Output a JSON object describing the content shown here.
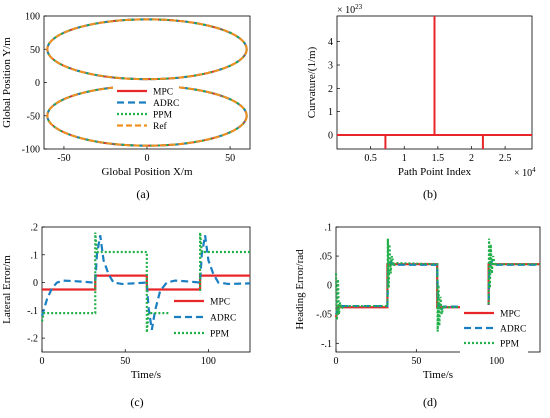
{
  "colors": {
    "MPC": "#e8262a",
    "ADRC": "#1a7fc1",
    "PPM": "#22b04a",
    "Ref": "#f09020"
  },
  "chart_data": [
    {
      "id": "a",
      "caption": "(a)",
      "type": "line",
      "xlabel": "Global Position X/m",
      "ylabel": "Global Position Y/m",
      "xlim": [
        -62,
        62
      ],
      "ylim": [
        -100,
        100
      ],
      "xticks": [
        -50,
        0,
        50
      ],
      "yticks": [
        -100,
        -50,
        0,
        50,
        100
      ],
      "legend": {
        "placement": "center-bottom",
        "entries": [
          "MPC",
          "ADRC",
          "PPM",
          "Ref"
        ]
      },
      "shape": {
        "description_values": {
          "ellipses": [
            {
              "cx": 0,
              "cy": 50,
              "rx": 60,
              "ry": 45
            },
            {
              "cx": 0,
              "cy": -50,
              "rx": 60,
              "ry": 45
            }
          ]
        }
      },
      "series": [
        {
          "name": "MPC"
        },
        {
          "name": "ADRC"
        },
        {
          "name": "PPM"
        },
        {
          "name": "Ref"
        }
      ]
    },
    {
      "id": "b",
      "caption": "(b)",
      "type": "line",
      "xlabel": "Path Point Index",
      "ylabel": "Curvature/(1/m)",
      "x_exponent": "× 10",
      "x_exponent_power": "4",
      "y_exponent": "× 10",
      "y_exponent_power": "23",
      "xlim": [
        0,
        2.9
      ],
      "ylim": [
        -0.6,
        5.1
      ],
      "xticks": [
        0.5,
        1,
        1.5,
        2,
        2.5
      ],
      "yticks": [
        0,
        1,
        2,
        3,
        4
      ],
      "spikes": [
        {
          "x": 0.72,
          "y": -0.6
        },
        {
          "x": 1.45,
          "y": 5.1
        },
        {
          "x": 2.17,
          "y": -0.6
        }
      ]
    },
    {
      "id": "c",
      "caption": "(c)",
      "type": "line",
      "xlabel": "Time/s",
      "ylabel": "Lateral Error/m",
      "xlim": [
        0,
        125
      ],
      "ylim": [
        -0.25,
        0.2
      ],
      "xticks": [
        0,
        50,
        100
      ],
      "yticks": [
        -0.2,
        -0.1,
        0,
        0.1,
        0.2
      ],
      "legend": {
        "placement": "bottom-right",
        "entries": [
          "MPC",
          "ADRC",
          "PPM"
        ]
      },
      "series": [
        {
          "name": "MPC",
          "points": [
            [
              0,
              -0.025
            ],
            [
              32,
              -0.025
            ],
            [
              32,
              0.025
            ],
            [
              63,
              0.025
            ],
            [
              63,
              -0.025
            ],
            [
              95,
              -0.025
            ],
            [
              95,
              0.025
            ],
            [
              125,
              0.025
            ]
          ]
        },
        {
          "name": "ADRC",
          "points": [
            [
              0,
              -0.12
            ],
            [
              3,
              -0.06
            ],
            [
              6,
              -0.02
            ],
            [
              9,
              0.0
            ],
            [
              13,
              0.007
            ],
            [
              20,
              0.005
            ],
            [
              31,
              0.0
            ],
            [
              32,
              0.0
            ],
            [
              33,
              0.1
            ],
            [
              35,
              0.17
            ],
            [
              37,
              0.08
            ],
            [
              40,
              0.03
            ],
            [
              43,
              0.0
            ],
            [
              48,
              -0.005
            ],
            [
              55,
              -0.003
            ],
            [
              63,
              0.0
            ],
            [
              64,
              -0.09
            ],
            [
              66,
              -0.17
            ],
            [
              68,
              -0.1
            ],
            [
              71,
              -0.03
            ],
            [
              75,
              0.0
            ],
            [
              80,
              0.007
            ],
            [
              88,
              0.004
            ],
            [
              95,
              0.0
            ],
            [
              96,
              0.1
            ],
            [
              98,
              0.17
            ],
            [
              100,
              0.08
            ],
            [
              103,
              0.03
            ],
            [
              106,
              0.0
            ],
            [
              112,
              -0.005
            ],
            [
              125,
              -0.003
            ]
          ]
        },
        {
          "name": "PPM",
          "points": [
            [
              0,
              -0.14
            ],
            [
              1,
              -0.11
            ],
            [
              32,
              -0.11
            ],
            [
              32,
              0.18
            ],
            [
              33,
              0.11
            ],
            [
              63,
              0.11
            ],
            [
              63,
              -0.18
            ],
            [
              64,
              -0.11
            ],
            [
              95,
              -0.11
            ],
            [
              95,
              0.18
            ],
            [
              96,
              0.11
            ],
            [
              125,
              0.11
            ]
          ]
        }
      ]
    },
    {
      "id": "d",
      "caption": "(d)",
      "type": "line",
      "xlabel": "Time/s",
      "ylabel": "Heading Error/rad",
      "xlim": [
        0,
        127
      ],
      "ylim": [
        -0.115,
        0.1
      ],
      "xticks": [
        0,
        50,
        100
      ],
      "yticks": [
        -0.1,
        -0.05,
        0,
        0.05,
        0.1
      ],
      "legend": {
        "placement": "bottom-right",
        "entries": [
          "MPC",
          "ADRC",
          "PPM"
        ]
      },
      "series": [
        {
          "name": "MPC",
          "points": [
            [
              0,
              -0.055
            ],
            [
              1,
              -0.038
            ],
            [
              32,
              -0.038
            ],
            [
              32,
              0.036
            ],
            [
              63,
              0.036
            ],
            [
              63,
              -0.038
            ],
            [
              95,
              -0.038
            ],
            [
              95,
              0.036
            ],
            [
              127,
              0.036
            ]
          ]
        },
        {
          "name": "ADRC",
          "points": [
            [
              0,
              -0.05
            ],
            [
              2,
              -0.036
            ],
            [
              32,
              -0.036
            ],
            [
              32.5,
              0.028
            ],
            [
              34,
              0.04
            ],
            [
              36,
              0.035
            ],
            [
              63,
              0.035
            ],
            [
              63.5,
              -0.03
            ],
            [
              65,
              -0.045
            ],
            [
              67,
              -0.037
            ],
            [
              95,
              -0.037
            ],
            [
              95.5,
              0.028
            ],
            [
              97,
              0.04
            ],
            [
              99,
              0.035
            ],
            [
              127,
              0.035
            ]
          ]
        },
        {
          "name": "PPM",
          "points": [
            [
              0,
              0.02
            ],
            [
              0.6,
              -0.06
            ],
            [
              1.2,
              0.01
            ],
            [
              1.8,
              -0.05
            ],
            [
              2.5,
              -0.03
            ],
            [
              3.5,
              -0.04
            ],
            [
              5,
              -0.036
            ],
            [
              32,
              -0.036
            ],
            [
              32.3,
              0.08
            ],
            [
              32.8,
              -0.005
            ],
            [
              33.3,
              0.07
            ],
            [
              34,
              0.02
            ],
            [
              34.8,
              0.05
            ],
            [
              36,
              0.033
            ],
            [
              37,
              0.038
            ],
            [
              63,
              0.036
            ],
            [
              63.3,
              -0.08
            ],
            [
              63.8,
              0.0
            ],
            [
              64.3,
              -0.07
            ],
            [
              65,
              -0.02
            ],
            [
              65.8,
              -0.05
            ],
            [
              67,
              -0.035
            ],
            [
              68,
              -0.038
            ],
            [
              95,
              -0.038
            ],
            [
              95.3,
              0.08
            ],
            [
              95.8,
              -0.005
            ],
            [
              96.3,
              0.07
            ],
            [
              97,
              0.02
            ],
            [
              97.8,
              0.05
            ],
            [
              99,
              0.033
            ],
            [
              100,
              0.036
            ],
            [
              127,
              0.036
            ]
          ]
        }
      ]
    }
  ]
}
